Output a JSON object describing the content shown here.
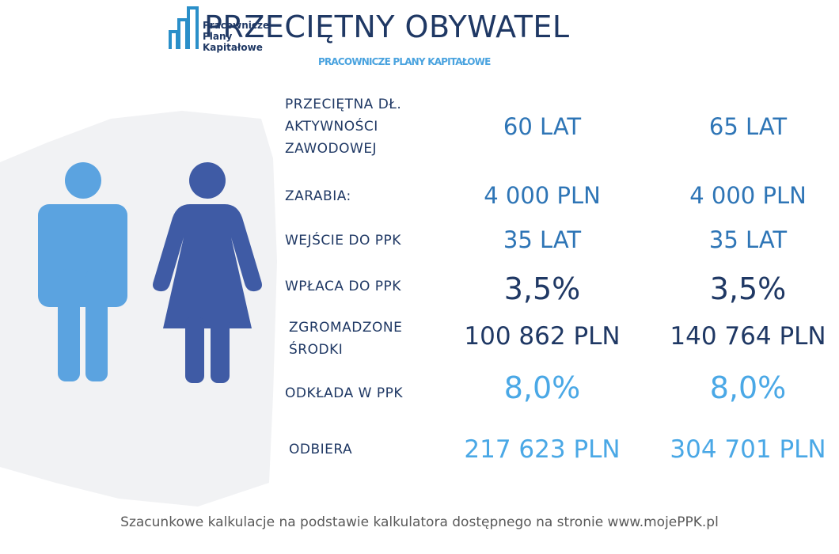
{
  "header": {
    "logo": [
      "Pracownicze",
      "Plany",
      "Kapitałowe"
    ],
    "title": "PRZECIĘTNY OBYWATEL",
    "subtitle": "PRACOWNICZE PLANY KAPITAŁOWE"
  },
  "rows": [
    {
      "label": [
        "PRZECIĘTNA DŁ.",
        "AKTYWNOŚCI",
        "ZAWODOWEJ"
      ],
      "values": [
        "60 LAT",
        "65 LAT"
      ]
    },
    {
      "label": [
        "ZARABIA:"
      ],
      "values": [
        "4 000 PLN",
        "4 000 PLN"
      ]
    },
    {
      "label": [
        "WEJŚCIE DO PPK"
      ],
      "values": [
        "35 LAT",
        "35 LAT"
      ]
    },
    {
      "label": [
        "WPŁACA DO PPK"
      ],
      "values": [
        "3,5%",
        "3,5%"
      ]
    },
    {
      "label": [
        "ZGROMADZONE",
        "ŚRODKI"
      ],
      "values": [
        "100 862 PLN",
        "140 764 PLN"
      ]
    },
    {
      "label": [
        "ODKŁADA W PPK"
      ],
      "values": [
        "8,0%",
        "8,0%"
      ]
    },
    {
      "label": [
        "ODBIERA"
      ],
      "values": [
        "217 623 PLN",
        "304 701 PLN"
      ]
    }
  ],
  "footer": "Szacunkowe kalkulacje na podstawie kalkulatora dostępnego na stronie www.mojePPK.pl"
}
